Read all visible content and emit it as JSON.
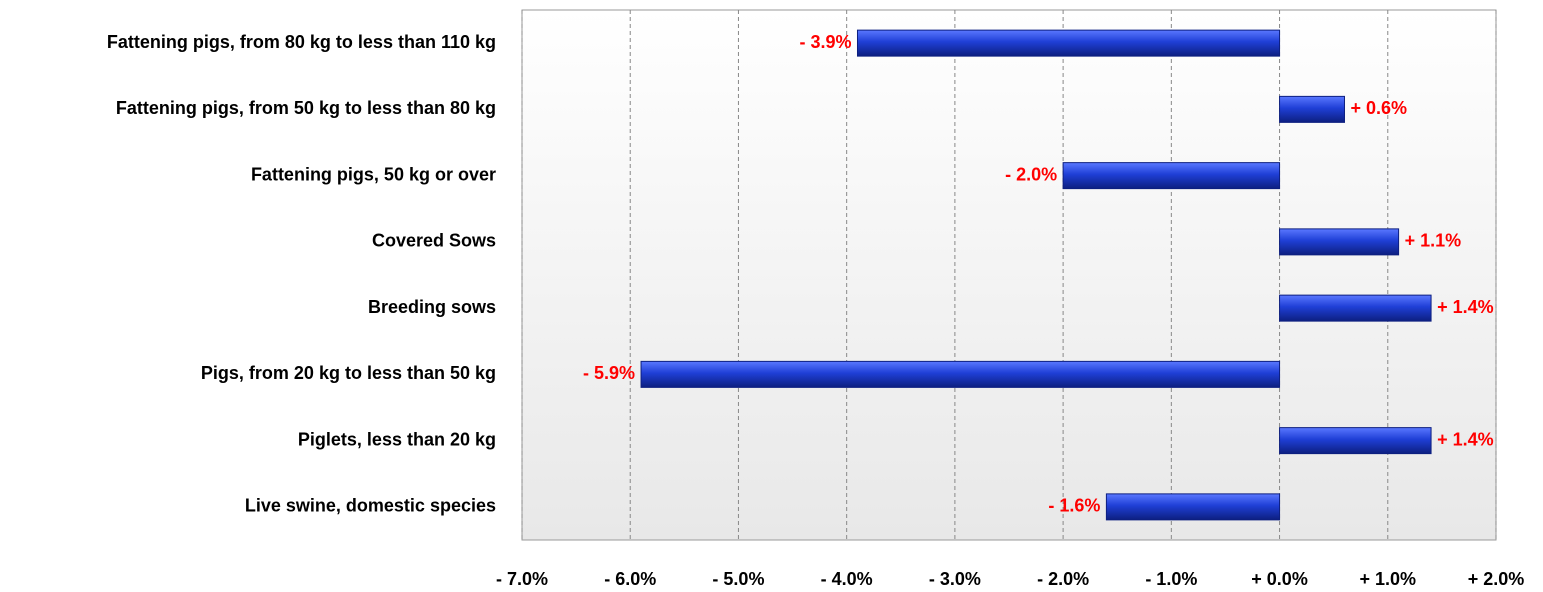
{
  "chart_data": {
    "type": "bar",
    "orientation": "horizontal",
    "categories": [
      "Fattening pigs, from 80 kg to less than 110 kg",
      "Fattening pigs, from 50 kg to less than 80 kg",
      "Fattening pigs, 50 kg or over",
      "Covered Sows",
      "Breeding sows",
      "Pigs, from 20 kg to less than 50 kg",
      "Piglets, less than 20 kg",
      "Live swine, domestic species"
    ],
    "values": [
      -3.9,
      0.6,
      -2.0,
      1.1,
      1.4,
      -5.9,
      1.4,
      -1.6
    ],
    "value_labels": [
      "- 3.9%",
      "+ 0.6%",
      "- 2.0%",
      "+ 1.1%",
      "+ 1.4%",
      "- 5.9%",
      "+ 1.4%",
      "- 1.6%"
    ],
    "color": "#1f3fd6",
    "label_color": "#ff0000",
    "xlim": [
      -7,
      2
    ],
    "xticks": [
      {
        "value": -7,
        "label": "- 7.0%"
      },
      {
        "value": -6,
        "label": "- 6.0%"
      },
      {
        "value": -5,
        "label": "- 5.0%"
      },
      {
        "value": -4,
        "label": "- 4.0%"
      },
      {
        "value": -3,
        "label": "- 3.0%"
      },
      {
        "value": -2,
        "label": "- 2.0%"
      },
      {
        "value": -1,
        "label": "- 1.0%"
      },
      {
        "value": 0,
        "label": "+ 0.0%"
      },
      {
        "value": 1,
        "label": "+ 1.0%"
      },
      {
        "value": 2,
        "label": "+ 2.0%"
      }
    ],
    "grid": true
  }
}
